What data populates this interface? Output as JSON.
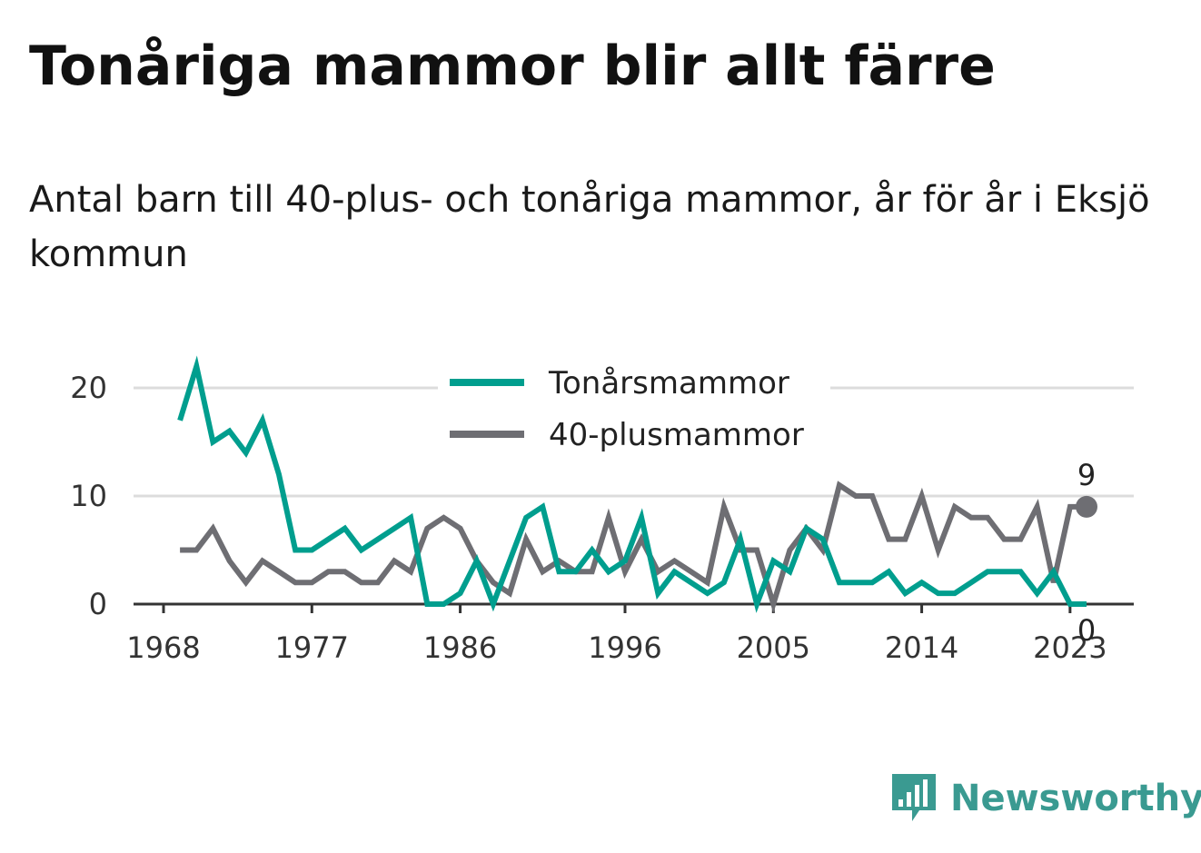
{
  "chart_data": {
    "type": "line",
    "title": "Tonåriga mammor blir allt färre",
    "subtitle": "Antal barn till 40-plus- och tonåriga mammor, år för år i Eksjö kommun",
    "xlabel": "",
    "ylabel": "",
    "x": [
      1969,
      1970,
      1971,
      1972,
      1973,
      1974,
      1975,
      1976,
      1977,
      1978,
      1979,
      1980,
      1981,
      1982,
      1983,
      1984,
      1985,
      1986,
      1987,
      1988,
      1989,
      1990,
      1991,
      1992,
      1993,
      1994,
      1995,
      1996,
      1997,
      1998,
      1999,
      2000,
      2001,
      2002,
      2003,
      2004,
      2005,
      2006,
      2007,
      2008,
      2009,
      2010,
      2011,
      2012,
      2013,
      2014,
      2015,
      2016,
      2017,
      2018,
      2019,
      2020,
      2021,
      2022,
      2023,
      2024
    ],
    "xlim": [
      1968,
      2025.5
    ],
    "ylim": [
      0,
      20
    ],
    "x_ticks": [
      1968,
      1977,
      1986,
      1996,
      2005,
      2014,
      2023
    ],
    "y_ticks": [
      0,
      10,
      20
    ],
    "grid": true,
    "legend_position": "top-center",
    "series": [
      {
        "name": "Tonårsmammor",
        "color": "#009e8e",
        "values": [
          17,
          22,
          15,
          16,
          14,
          17,
          12,
          5,
          5,
          6,
          7,
          5,
          6,
          7,
          8,
          0,
          0,
          1,
          4,
          0,
          4,
          8,
          9,
          3,
          3,
          5,
          3,
          4,
          8,
          1,
          3,
          2,
          1,
          2,
          6,
          0,
          4,
          3,
          7,
          6,
          2,
          2,
          2,
          3,
          1,
          2,
          1,
          1,
          2,
          3,
          3,
          3,
          1,
          3,
          0,
          0
        ],
        "end_label": "0"
      },
      {
        "name": "40-plusmammor",
        "color": "#6e6e73",
        "values": [
          5,
          5,
          7,
          4,
          2,
          4,
          3,
          2,
          2,
          3,
          3,
          2,
          2,
          4,
          3,
          7,
          8,
          7,
          4,
          2,
          1,
          6,
          3,
          4,
          3,
          3,
          8,
          3,
          6,
          3,
          4,
          3,
          2,
          9,
          5,
          5,
          0,
          5,
          7,
          5,
          11,
          10,
          10,
          6,
          6,
          10,
          5,
          9,
          8,
          8,
          6,
          6,
          9,
          2,
          9,
          9
        ],
        "end_label": "9"
      }
    ]
  },
  "brand": {
    "name": "Newsworthy",
    "logo_icon": "newsworthy-bar-chart-icon",
    "color": "#3a9a91"
  }
}
